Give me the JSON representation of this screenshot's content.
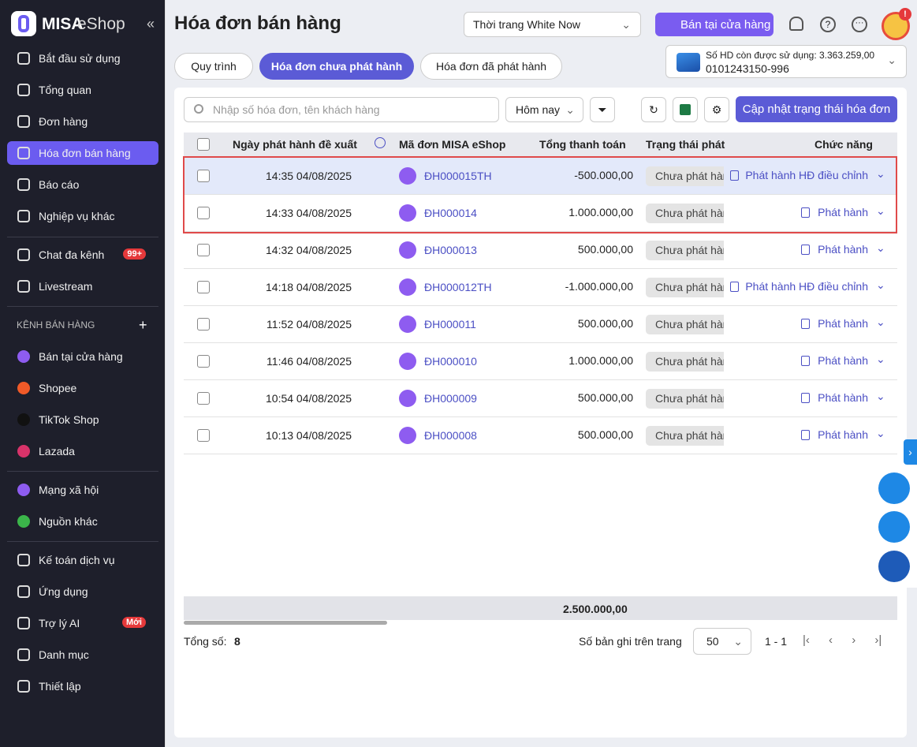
{
  "sidebar": {
    "logo": {
      "brand": "MISA",
      "product": "eShop"
    },
    "main_menu": [
      {
        "label": "Bắt đầu sử dụng"
      },
      {
        "label": "Tổng quan"
      },
      {
        "label": "Đơn hàng"
      },
      {
        "label": "Hóa đơn bán hàng"
      },
      {
        "label": "Báo cáo"
      },
      {
        "label": "Nghiệp vụ khác"
      }
    ],
    "engage_menu": [
      {
        "label": "Chat đa kênh",
        "badge": "99+"
      },
      {
        "label": "Livestream"
      }
    ],
    "channels_heading": "KÊNH BÁN HÀNG",
    "channels": [
      {
        "label": "Bán tại cửa hàng"
      },
      {
        "label": "Shopee"
      },
      {
        "label": "TikTok Shop"
      },
      {
        "label": "Lazada"
      }
    ],
    "sources": [
      {
        "label": "Mạng xã hội"
      },
      {
        "label": "Nguồn khác"
      }
    ],
    "tools": [
      {
        "label": "Kế toán dịch vụ"
      },
      {
        "label": "Ứng dụng"
      },
      {
        "label": "Trợ lý AI",
        "badge": "Mới"
      },
      {
        "label": "Danh mục"
      },
      {
        "label": "Thiết lập"
      }
    ]
  },
  "header": {
    "title": "Hóa đơn bán hàng",
    "store": "Thời trang White Now",
    "pos_button": "Bán tại cửa hàng",
    "alert": "!"
  },
  "tabs": [
    "Quy trình",
    "Hóa đơn chưa phát hành",
    "Hóa đơn đã phát hành"
  ],
  "invoice_box": {
    "remaining": "Số HD còn được sử dụng: 3.363.259,00",
    "tax_code": "0101243150-996"
  },
  "toolbar": {
    "search_placeholder": "Nhập số hóa đơn, tên khách hàng",
    "period": "Hôm nay",
    "update_button": "Cập nhật trạng thái hóa đơn"
  },
  "table": {
    "columns": [
      "Ngày phát hành đề xuất",
      "Mã đơn MISA eShop",
      "Tổng thanh toán",
      "Trạng thái phát",
      "Chức năng"
    ],
    "rows": [
      {
        "date": "14:35 04/08/2025",
        "code": "ĐH000015TH",
        "total": "-500.000,00",
        "status": "Chưa phát hành",
        "action": "Phát hành HĐ điều chỉnh"
      },
      {
        "date": "14:33 04/08/2025",
        "code": "ĐH000014",
        "total": "1.000.000,00",
        "status": "Chưa phát hành",
        "action": "Phát hành"
      },
      {
        "date": "14:32 04/08/2025",
        "code": "ĐH000013",
        "total": "500.000,00",
        "status": "Chưa phát hành",
        "action": "Phát hành"
      },
      {
        "date": "14:18 04/08/2025",
        "code": "ĐH000012TH",
        "total": "-1.000.000,00",
        "status": "Chưa phát hành",
        "action": "Phát hành HĐ điều chỉnh"
      },
      {
        "date": "11:52 04/08/2025",
        "code": "ĐH000011",
        "total": "500.000,00",
        "status": "Chưa phát hành",
        "action": "Phát hành"
      },
      {
        "date": "11:46 04/08/2025",
        "code": "ĐH000010",
        "total": "1.000.000,00",
        "status": "Chưa phát hành",
        "action": "Phát hành"
      },
      {
        "date": "10:54 04/08/2025",
        "code": "ĐH000009",
        "total": "500.000,00",
        "status": "Chưa phát hành",
        "action": "Phát hành"
      },
      {
        "date": "10:13 04/08/2025",
        "code": "ĐH000008",
        "total": "500.000,00",
        "status": "Chưa phát hành",
        "action": "Phát hành"
      }
    ],
    "sum_total": "2.500.000,00"
  },
  "pagination": {
    "count_label": "Tổng số:",
    "count": "8",
    "page_size_label": "Số bản ghi trên trang",
    "page_size": "50",
    "range": "1 - 1"
  }
}
